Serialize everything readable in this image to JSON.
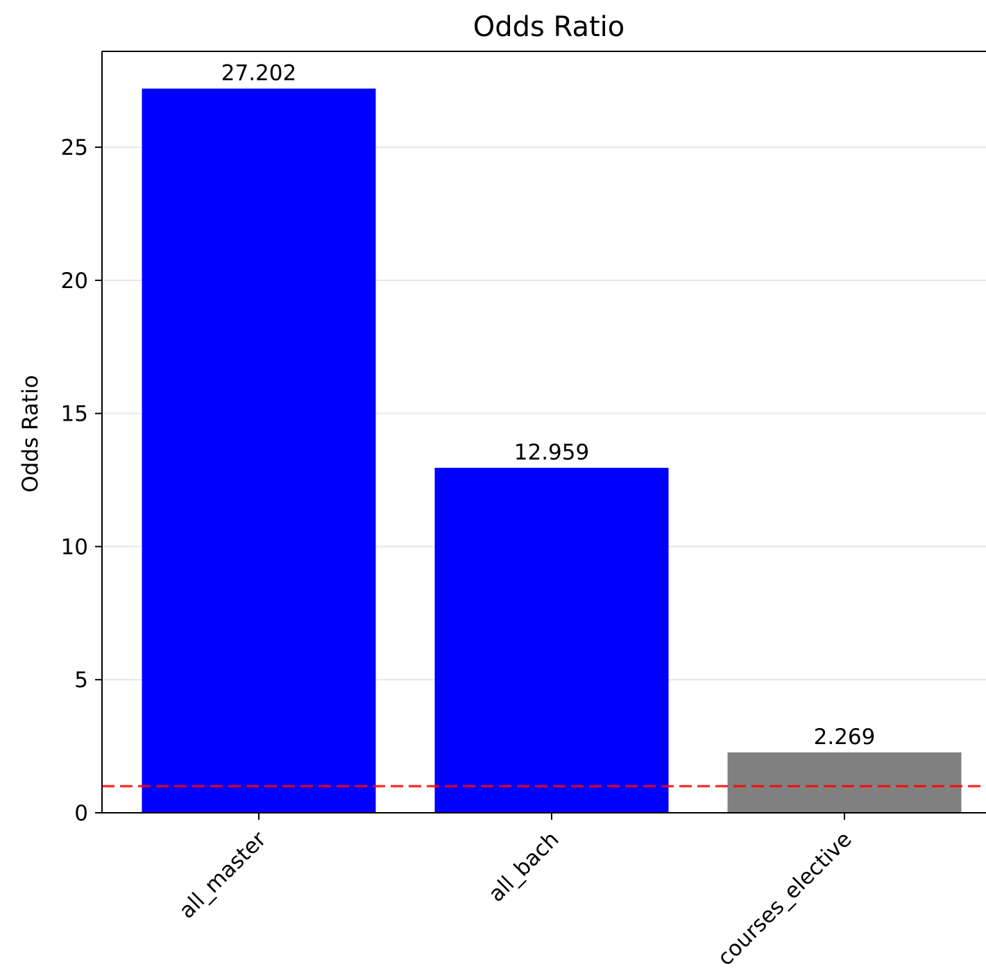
{
  "chart_data": {
    "type": "bar",
    "title": "Odds Ratio",
    "xlabel": "",
    "ylabel": "Odds Ratio",
    "categories": [
      "all_master",
      "all_bach",
      "courses_elective"
    ],
    "values": [
      27.202,
      12.959,
      2.269
    ],
    "value_labels": [
      "27.202",
      "12.959",
      "2.269"
    ],
    "bar_colors": [
      "#0000ff",
      "#0000ff",
      "#808080"
    ],
    "ylim": [
      0,
      28.6
    ],
    "yticks": [
      0,
      5,
      10,
      15,
      20,
      25
    ],
    "ytick_labels": [
      "0",
      "5",
      "10",
      "15",
      "20",
      "25"
    ],
    "grid": "horizontal",
    "grid_color": "#e6e6e6",
    "reference_line": {
      "value": 1,
      "color": "#ff0000",
      "style": "dashed"
    },
    "legend": "none"
  }
}
